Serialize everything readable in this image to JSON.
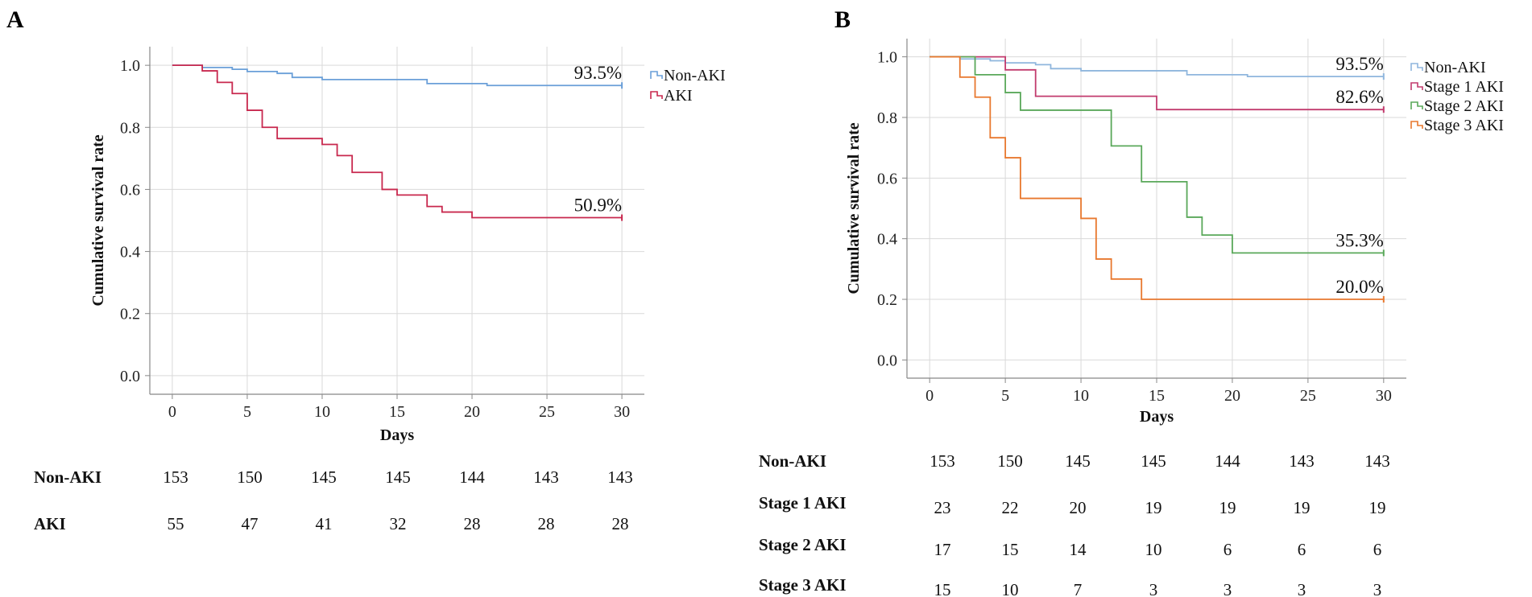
{
  "chart_data": [
    {
      "panel": "A",
      "type": "line",
      "title": "",
      "xlabel": "Days",
      "ylabel": "Cumulative survival rate",
      "xlim": [
        -1.5,
        31.5
      ],
      "ylim": [
        -0.06,
        1.06
      ],
      "xticks": [
        0,
        5,
        10,
        15,
        20,
        25,
        30
      ],
      "yticks": [
        0.0,
        0.2,
        0.4,
        0.6,
        0.8,
        1.0
      ],
      "ytick_labels": [
        "0.0",
        "0.2",
        "0.4",
        "0.6",
        "0.8",
        "1.0"
      ],
      "grid": true,
      "legend_position": "top-right",
      "series": [
        {
          "name": "Non-AKI",
          "color": "#6a9fd8",
          "end_label": "93.5%",
          "steps": [
            [
              0,
              1.0
            ],
            [
              2,
              0.993
            ],
            [
              4,
              0.987
            ],
            [
              5,
              0.98
            ],
            [
              7,
              0.974
            ],
            [
              8,
              0.961
            ],
            [
              10,
              0.954
            ],
            [
              17,
              0.941
            ],
            [
              21,
              0.935
            ],
            [
              30,
              0.935
            ]
          ]
        },
        {
          "name": "AKI",
          "color": "#c8284e",
          "end_label": "50.9%",
          "steps": [
            [
              0,
              1.0
            ],
            [
              2,
              0.982
            ],
            [
              3,
              0.945
            ],
            [
              4,
              0.909
            ],
            [
              5,
              0.855
            ],
            [
              6,
              0.8
            ],
            [
              7,
              0.764
            ],
            [
              10,
              0.745
            ],
            [
              11,
              0.709
            ],
            [
              12,
              0.655
            ],
            [
              14,
              0.6
            ],
            [
              15,
              0.582
            ],
            [
              17,
              0.545
            ],
            [
              18,
              0.527
            ],
            [
              20,
              0.509
            ],
            [
              30,
              0.509
            ]
          ]
        }
      ],
      "risk_table": {
        "rows": [
          {
            "label": "Non-AKI",
            "values": [
              "153",
              "150",
              "145",
              "145",
              "144",
              "143",
              "143"
            ]
          },
          {
            "label": "AKI",
            "values": [
              "55",
              "47",
              "41",
              "32",
              "28",
              "28",
              "28"
            ]
          }
        ]
      }
    },
    {
      "panel": "B",
      "type": "line",
      "title": "",
      "xlabel": "Days",
      "ylabel": "Cumulative survival rate",
      "xlim": [
        -1.5,
        31.5
      ],
      "ylim": [
        -0.06,
        1.06
      ],
      "xticks": [
        0,
        5,
        10,
        15,
        20,
        25,
        30
      ],
      "yticks": [
        0.0,
        0.2,
        0.4,
        0.6,
        0.8,
        1.0
      ],
      "ytick_labels": [
        "0.0",
        "0.2",
        "0.4",
        "0.6",
        "0.8",
        "1.0"
      ],
      "grid": true,
      "legend_position": "top-right",
      "series": [
        {
          "name": "Non-AKI",
          "color": "#8fb6dd",
          "end_label": "93.5%",
          "steps": [
            [
              0,
              1.0
            ],
            [
              2,
              0.993
            ],
            [
              4,
              0.987
            ],
            [
              5,
              0.98
            ],
            [
              7,
              0.974
            ],
            [
              8,
              0.961
            ],
            [
              10,
              0.954
            ],
            [
              17,
              0.941
            ],
            [
              21,
              0.935
            ],
            [
              30,
              0.935
            ]
          ]
        },
        {
          "name": "Stage 1 AKI",
          "color": "#c23b6e",
          "end_label": "82.6%",
          "steps": [
            [
              0,
              1.0
            ],
            [
              5,
              0.957
            ],
            [
              7,
              0.87
            ],
            [
              15,
              0.826
            ],
            [
              30,
              0.826
            ]
          ]
        },
        {
          "name": "Stage 2 AKI",
          "color": "#5aa85a",
          "end_label": "35.3%",
          "steps": [
            [
              0,
              1.0
            ],
            [
              3,
              0.941
            ],
            [
              5,
              0.882
            ],
            [
              6,
              0.824
            ],
            [
              12,
              0.706
            ],
            [
              14,
              0.588
            ],
            [
              17,
              0.471
            ],
            [
              18,
              0.412
            ],
            [
              20,
              0.353
            ],
            [
              30,
              0.353
            ]
          ]
        },
        {
          "name": "Stage 3 AKI",
          "color": "#e8782e",
          "end_label": "20.0%",
          "steps": [
            [
              0,
              1.0
            ],
            [
              2,
              0.933
            ],
            [
              3,
              0.867
            ],
            [
              4,
              0.733
            ],
            [
              5,
              0.667
            ],
            [
              6,
              0.533
            ],
            [
              10,
              0.467
            ],
            [
              11,
              0.333
            ],
            [
              12,
              0.267
            ],
            [
              14,
              0.2
            ],
            [
              30,
              0.2
            ]
          ]
        }
      ],
      "risk_table": {
        "rows": [
          {
            "label": "Non-AKI",
            "values": [
              "153",
              "150",
              "145",
              "145",
              "144",
              "143",
              "143"
            ]
          },
          {
            "label": "Stage 1 AKI",
            "values": [
              "23",
              "22",
              "20",
              "19",
              "19",
              "19",
              "19"
            ]
          },
          {
            "label": "Stage 2  AKI",
            "values": [
              "17",
              "15",
              "14",
              "10",
              "6",
              "6",
              "6"
            ]
          },
          {
            "label": "Stage 3 AKI",
            "values": [
              "15",
              "10",
              "7",
              "3",
              "3",
              "3",
              "3"
            ]
          }
        ]
      }
    }
  ]
}
